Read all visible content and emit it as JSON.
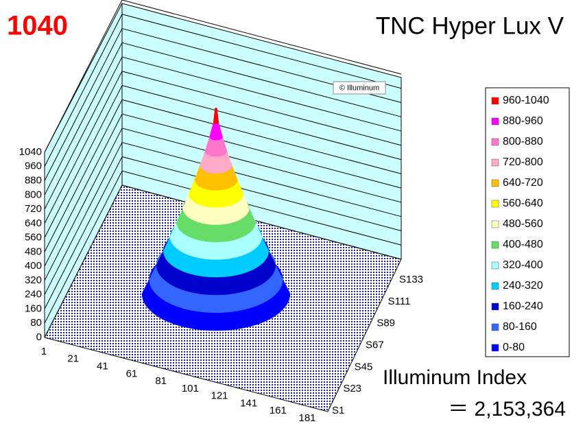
{
  "chart_data": {
    "type": "surface",
    "title": "TNC Hyper Lux V",
    "peak_label": "1040",
    "watermark": "© Illuminum",
    "categories": [
      "1",
      "21",
      "41",
      "61",
      "81",
      "101",
      "121",
      "141",
      "161",
      "181"
    ],
    "series_names": [
      "S1",
      "S23",
      "S45",
      "S67",
      "S89",
      "S111",
      "S133"
    ],
    "zlim": [
      0,
      1040
    ],
    "zticks": [
      0,
      80,
      160,
      240,
      320,
      400,
      480,
      560,
      640,
      720,
      800,
      880,
      960,
      1040
    ],
    "grid": true,
    "bands": [
      {
        "name": "960-1040",
        "color": "#ff0000"
      },
      {
        "name": "880-960",
        "color": "#ff00ff"
      },
      {
        "name": "800-880",
        "color": "#ff77cc"
      },
      {
        "name": "720-800",
        "color": "#ffaac8"
      },
      {
        "name": "640-720",
        "color": "#ffc000"
      },
      {
        "name": "560-640",
        "color": "#ffff00"
      },
      {
        "name": "480-560",
        "color": "#ffffc0"
      },
      {
        "name": "400-480",
        "color": "#66dd66"
      },
      {
        "name": "320-400",
        "color": "#aaffff"
      },
      {
        "name": "240-320",
        "color": "#00ccff"
      },
      {
        "name": "160-240",
        "color": "#0000cc"
      },
      {
        "name": "80-160",
        "color": "#3366ff"
      },
      {
        "name": "0-80",
        "color": "#0000ff"
      }
    ],
    "index_label": "Illuminum Index",
    "index_value": "＝ 2,153,364"
  }
}
